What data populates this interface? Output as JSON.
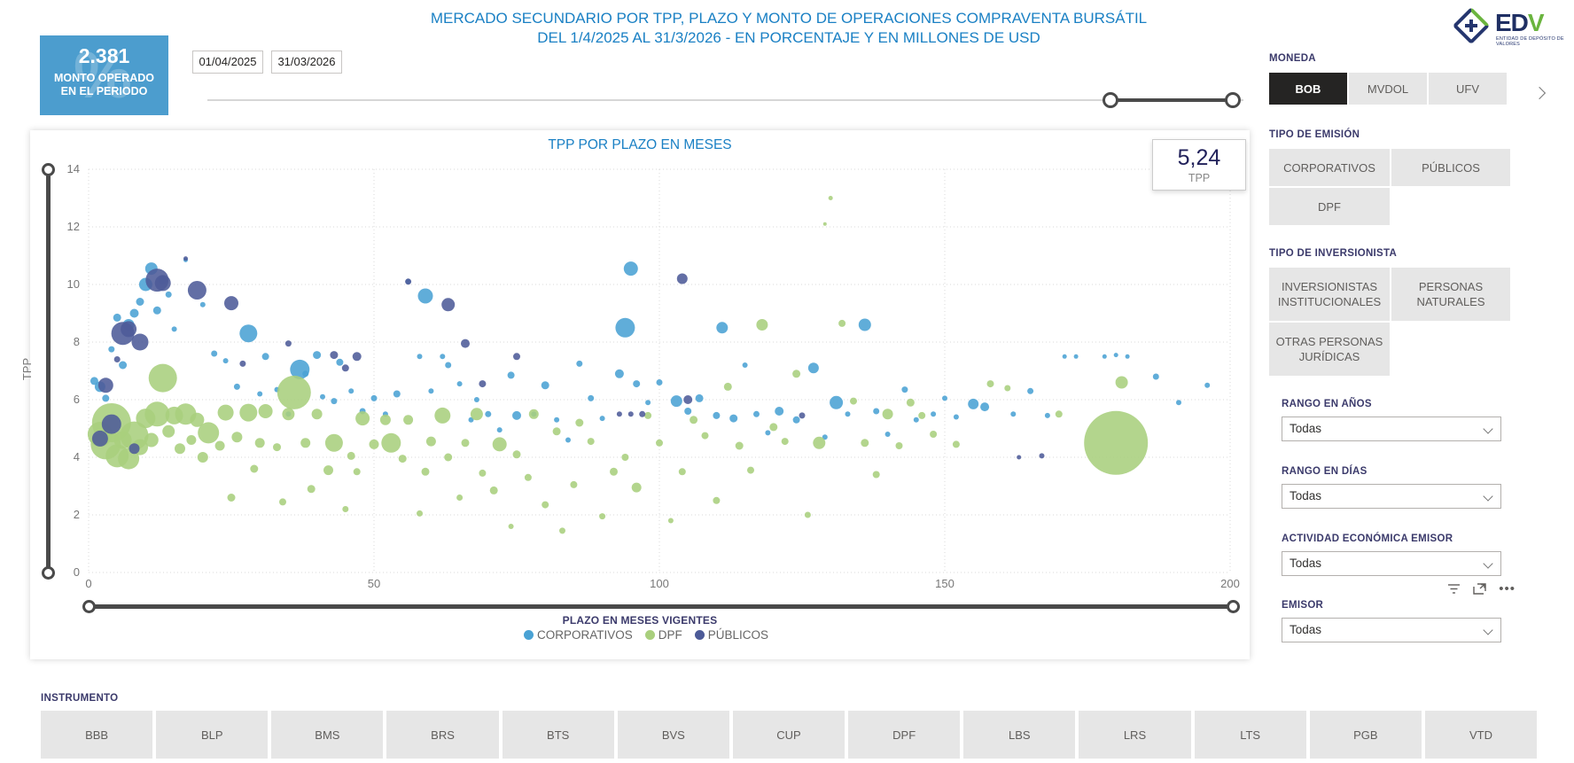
{
  "header": {
    "title_line1": "MERCADO SECUNDARIO POR TPP, PLAZO Y MONTO DE OPERACIONES COMPRAVENTA BURSÁTIL",
    "title_line2": "DEL 1/4/2025 AL 31/3/2026 - EN PORCENTAJE Y EN MILLONES DE USD",
    "logo": {
      "text_primary": "ED",
      "text_accent": "V",
      "tagline": "ENTIDAD DE DEPÓSITO DE VALORES"
    }
  },
  "kpi_card": {
    "value": "2.381",
    "label_line1": "MONTO OPERADO",
    "label_line2": "EN EL PERIODO",
    "watermark": "%",
    "bg_color": "#4c9dce"
  },
  "date_range": {
    "start": "01/04/2025",
    "end": "31/03/2026"
  },
  "tpp_card": {
    "value": "5,24",
    "label": "TPP"
  },
  "filters": {
    "moneda": {
      "label": "MONEDA",
      "options": [
        {
          "label": "BOB",
          "selected": true
        },
        {
          "label": "MVDOL",
          "selected": false
        },
        {
          "label": "UFV",
          "selected": false
        }
      ]
    },
    "tipo_emision": {
      "label": "TIPO DE EMISIÓN",
      "options": [
        "CORPORATIVOS",
        "PÚBLICOS",
        "DPF"
      ]
    },
    "tipo_inversionista": {
      "label": "TIPO DE INVERSIONISTA",
      "options": [
        "INVERSIONISTAS INSTITUCIONALES",
        "PERSONAS NATURALES",
        "OTRAS PERSONAS JURÍDICAS"
      ]
    },
    "dropdowns": [
      {
        "label": "RANGO EN AÑOS",
        "value": "Todas"
      },
      {
        "label": "RANGO EN DÍAS",
        "value": "Todas"
      },
      {
        "label": "ACTIVIDAD ECONÓMICA EMISOR",
        "value": "Todas"
      },
      {
        "label": "EMISOR",
        "value": "Todas"
      }
    ]
  },
  "instrumento": {
    "label": "INSTRUMENTO",
    "options": [
      "BBB",
      "BLP",
      "BMS",
      "BRS",
      "BTS",
      "BVS",
      "CUP",
      "DPF",
      "LBS",
      "LRS",
      "LTS",
      "PGB",
      "VTD"
    ]
  },
  "chart_data": {
    "type": "scatter",
    "title": "TPP POR PLAZO EN MESES",
    "xlabel": "PLAZO EN MESES VIGENTES",
    "ylabel": "TPP",
    "xlim": [
      0,
      200
    ],
    "ylim": [
      0,
      14
    ],
    "xticks": [
      0,
      50,
      100,
      150,
      200
    ],
    "yticks": [
      0,
      2,
      4,
      6,
      8,
      10,
      12,
      14
    ],
    "grid": true,
    "legend_position": "bottom",
    "point_format": "[plazo_meses, tpp_pct, bubble_px]",
    "series": [
      {
        "name": "CORPORATIVOS",
        "color": "#4aa2d4",
        "points": [
          [
            1,
            6.65,
            9
          ],
          [
            2,
            6.45,
            12
          ],
          [
            3,
            6.05,
            8
          ],
          [
            4,
            7.75,
            7
          ],
          [
            5,
            8.85,
            9
          ],
          [
            6,
            7.2,
            9
          ],
          [
            7,
            8.6,
            13
          ],
          [
            8,
            9.0,
            10
          ],
          [
            9,
            9.4,
            9
          ],
          [
            10,
            10.0,
            15
          ],
          [
            11,
            10.55,
            14
          ],
          [
            12,
            9.1,
            9
          ],
          [
            13,
            10.15,
            10
          ],
          [
            14,
            9.65,
            7
          ],
          [
            15,
            8.45,
            6
          ],
          [
            17,
            10.85,
            5
          ],
          [
            20,
            9.3,
            6
          ],
          [
            22,
            7.6,
            7
          ],
          [
            24,
            7.35,
            6
          ],
          [
            26,
            6.45,
            7
          ],
          [
            28,
            8.3,
            20
          ],
          [
            30,
            6.2,
            6
          ],
          [
            31,
            7.5,
            8
          ],
          [
            33,
            6.35,
            6
          ],
          [
            35,
            5.5,
            6
          ],
          [
            37,
            7.05,
            22
          ],
          [
            38,
            6.9,
            7
          ],
          [
            40,
            7.55,
            9
          ],
          [
            41,
            6.1,
            6
          ],
          [
            43,
            5.95,
            7
          ],
          [
            44,
            7.3,
            8
          ],
          [
            46,
            6.3,
            6
          ],
          [
            48,
            5.6,
            7
          ],
          [
            50,
            6.05,
            7
          ],
          [
            52,
            5.5,
            6
          ],
          [
            54,
            6.2,
            8
          ],
          [
            56,
            10.1,
            6
          ],
          [
            58,
            7.5,
            6
          ],
          [
            59,
            9.6,
            17
          ],
          [
            60,
            6.3,
            6
          ],
          [
            62,
            7.5,
            6
          ],
          [
            63,
            7.2,
            7
          ],
          [
            65,
            6.55,
            6
          ],
          [
            67,
            5.3,
            6
          ],
          [
            68,
            6.0,
            6
          ],
          [
            70,
            5.5,
            7
          ],
          [
            72,
            4.95,
            6
          ],
          [
            74,
            6.85,
            8
          ],
          [
            75,
            5.45,
            10
          ],
          [
            78,
            5.5,
            6
          ],
          [
            80,
            6.5,
            9
          ],
          [
            82,
            5.3,
            6
          ],
          [
            84,
            4.6,
            6
          ],
          [
            86,
            7.25,
            7
          ],
          [
            88,
            6.05,
            7
          ],
          [
            90,
            5.35,
            6
          ],
          [
            93,
            6.9,
            10
          ],
          [
            94,
            8.5,
            22
          ],
          [
            95,
            10.55,
            16
          ],
          [
            96,
            6.55,
            8
          ],
          [
            98,
            5.9,
            6
          ],
          [
            100,
            6.6,
            7
          ],
          [
            103,
            5.95,
            13
          ],
          [
            105,
            5.6,
            8
          ],
          [
            107,
            6.05,
            9
          ],
          [
            110,
            5.45,
            8
          ],
          [
            111,
            8.5,
            13
          ],
          [
            113,
            5.35,
            9
          ],
          [
            115,
            7.2,
            6
          ],
          [
            117,
            5.5,
            7
          ],
          [
            119,
            4.85,
            6
          ],
          [
            121,
            5.6,
            10
          ],
          [
            124,
            5.3,
            8
          ],
          [
            127,
            7.1,
            12
          ],
          [
            129,
            4.7,
            6
          ],
          [
            131,
            5.9,
            15
          ],
          [
            133,
            5.5,
            6
          ],
          [
            136,
            8.6,
            14
          ],
          [
            138,
            5.6,
            7
          ],
          [
            140,
            4.8,
            6
          ],
          [
            143,
            6.35,
            7
          ],
          [
            145,
            5.3,
            6
          ],
          [
            148,
            5.5,
            6
          ],
          [
            150,
            6.05,
            6
          ],
          [
            152,
            5.4,
            6
          ],
          [
            155,
            5.85,
            12
          ],
          [
            157,
            5.75,
            10
          ],
          [
            162,
            5.5,
            6
          ],
          [
            165,
            6.3,
            7
          ],
          [
            168,
            5.45,
            6
          ],
          [
            171,
            7.5,
            5
          ],
          [
            173,
            7.5,
            5
          ],
          [
            178,
            7.5,
            5
          ],
          [
            180,
            7.55,
            5
          ],
          [
            182,
            7.5,
            5
          ],
          [
            187,
            6.8,
            7
          ],
          [
            191,
            5.9,
            6
          ],
          [
            196,
            6.5,
            6
          ]
        ]
      },
      {
        "name": "DPF",
        "color": "#a9cf7d",
        "points": [
          [
            2,
            4.8,
            28
          ],
          [
            3,
            4.45,
            34
          ],
          [
            4,
            5.2,
            44
          ],
          [
            5,
            4.05,
            26
          ],
          [
            6,
            4.6,
            20
          ],
          [
            7,
            3.95,
            24
          ],
          [
            8,
            4.75,
            32
          ],
          [
            9,
            4.35,
            18
          ],
          [
            10,
            5.35,
            22
          ],
          [
            11,
            4.6,
            16
          ],
          [
            12,
            5.5,
            28
          ],
          [
            13,
            6.75,
            32
          ],
          [
            14,
            4.9,
            14
          ],
          [
            15,
            5.45,
            20
          ],
          [
            16,
            4.3,
            12
          ],
          [
            17,
            5.5,
            24
          ],
          [
            18,
            4.6,
            11
          ],
          [
            19,
            5.3,
            16
          ],
          [
            20,
            4.0,
            12
          ],
          [
            21,
            4.85,
            24
          ],
          [
            23,
            4.4,
            11
          ],
          [
            24,
            5.55,
            18
          ],
          [
            25,
            2.6,
            9
          ],
          [
            26,
            4.7,
            12
          ],
          [
            28,
            5.55,
            20
          ],
          [
            29,
            3.6,
            9
          ],
          [
            30,
            4.5,
            11
          ],
          [
            31,
            5.6,
            16
          ],
          [
            33,
            4.35,
            9
          ],
          [
            34,
            2.45,
            8
          ],
          [
            35,
            5.5,
            14
          ],
          [
            36,
            6.25,
            38
          ],
          [
            38,
            4.5,
            11
          ],
          [
            39,
            2.9,
            9
          ],
          [
            40,
            5.5,
            12
          ],
          [
            42,
            3.55,
            11
          ],
          [
            43,
            4.5,
            20
          ],
          [
            45,
            2.2,
            7
          ],
          [
            46,
            4.05,
            9
          ],
          [
            47,
            3.5,
            8
          ],
          [
            48,
            5.35,
            16
          ],
          [
            50,
            4.45,
            11
          ],
          [
            52,
            5.3,
            12
          ],
          [
            53,
            4.5,
            22
          ],
          [
            55,
            3.95,
            9
          ],
          [
            56,
            5.3,
            11
          ],
          [
            58,
            2.05,
            7
          ],
          [
            59,
            3.5,
            9
          ],
          [
            60,
            4.55,
            11
          ],
          [
            62,
            5.45,
            18
          ],
          [
            63,
            4.0,
            9
          ],
          [
            65,
            2.6,
            7
          ],
          [
            66,
            4.5,
            9
          ],
          [
            68,
            5.5,
            14
          ],
          [
            69,
            3.45,
            8
          ],
          [
            71,
            2.85,
            9
          ],
          [
            72,
            4.45,
            16
          ],
          [
            74,
            1.6,
            6
          ],
          [
            75,
            4.1,
            9
          ],
          [
            77,
            3.3,
            8
          ],
          [
            78,
            5.5,
            11
          ],
          [
            80,
            2.35,
            8
          ],
          [
            82,
            4.9,
            9
          ],
          [
            83,
            1.45,
            7
          ],
          [
            85,
            3.05,
            8
          ],
          [
            86,
            5.2,
            9
          ],
          [
            88,
            4.55,
            8
          ],
          [
            90,
            1.95,
            7
          ],
          [
            92,
            3.5,
            9
          ],
          [
            94,
            4.0,
            8
          ],
          [
            96,
            2.95,
            11
          ],
          [
            98,
            5.45,
            8
          ],
          [
            100,
            4.5,
            8
          ],
          [
            102,
            1.8,
            6
          ],
          [
            104,
            3.5,
            8
          ],
          [
            106,
            5.3,
            9
          ],
          [
            108,
            4.75,
            8
          ],
          [
            110,
            2.5,
            8
          ],
          [
            112,
            6.45,
            9
          ],
          [
            114,
            4.4,
            9
          ],
          [
            116,
            3.55,
            8
          ],
          [
            118,
            8.6,
            13
          ],
          [
            120,
            5.05,
            9
          ],
          [
            122,
            4.55,
            8
          ],
          [
            124,
            6.9,
            9
          ],
          [
            126,
            2.0,
            7
          ],
          [
            128,
            4.5,
            14
          ],
          [
            129,
            12.1,
            4
          ],
          [
            130,
            13.0,
            5
          ],
          [
            132,
            8.65,
            8
          ],
          [
            134,
            5.95,
            8
          ],
          [
            136,
            4.5,
            9
          ],
          [
            138,
            3.4,
            8
          ],
          [
            140,
            5.5,
            12
          ],
          [
            142,
            4.4,
            8
          ],
          [
            144,
            5.9,
            9
          ],
          [
            146,
            5.45,
            8
          ],
          [
            148,
            4.8,
            8
          ],
          [
            152,
            4.45,
            8
          ],
          [
            158,
            6.55,
            8
          ],
          [
            161,
            6.4,
            7
          ],
          [
            170,
            5.5,
            8
          ],
          [
            180,
            4.5,
            72
          ],
          [
            181,
            6.6,
            14
          ]
        ]
      },
      {
        "name": "PÚBLICOS",
        "color": "#4d5b98",
        "points": [
          [
            2,
            4.65,
            18
          ],
          [
            3,
            6.5,
            17
          ],
          [
            4,
            5.15,
            22
          ],
          [
            5,
            7.4,
            7
          ],
          [
            6,
            8.3,
            26
          ],
          [
            7,
            8.45,
            18
          ],
          [
            8,
            4.3,
            12
          ],
          [
            9,
            8.0,
            19
          ],
          [
            12,
            10.15,
            26
          ],
          [
            13,
            10.05,
            18
          ],
          [
            17,
            10.9,
            5
          ],
          [
            19,
            9.8,
            21
          ],
          [
            25,
            9.35,
            16
          ],
          [
            27,
            7.25,
            7
          ],
          [
            35,
            7.95,
            7
          ],
          [
            43,
            7.55,
            9
          ],
          [
            45,
            7.1,
            8
          ],
          [
            47,
            7.5,
            10
          ],
          [
            56,
            10.1,
            7
          ],
          [
            63,
            9.3,
            15
          ],
          [
            66,
            7.95,
            10
          ],
          [
            69,
            6.55,
            8
          ],
          [
            75,
            7.5,
            8
          ],
          [
            93,
            5.5,
            6
          ],
          [
            95,
            5.5,
            6
          ],
          [
            97,
            5.5,
            7
          ],
          [
            104,
            10.2,
            12
          ],
          [
            105,
            6.0,
            10
          ],
          [
            125,
            5.45,
            7
          ],
          [
            163,
            4.0,
            5
          ],
          [
            167,
            4.05,
            6
          ]
        ]
      }
    ]
  }
}
